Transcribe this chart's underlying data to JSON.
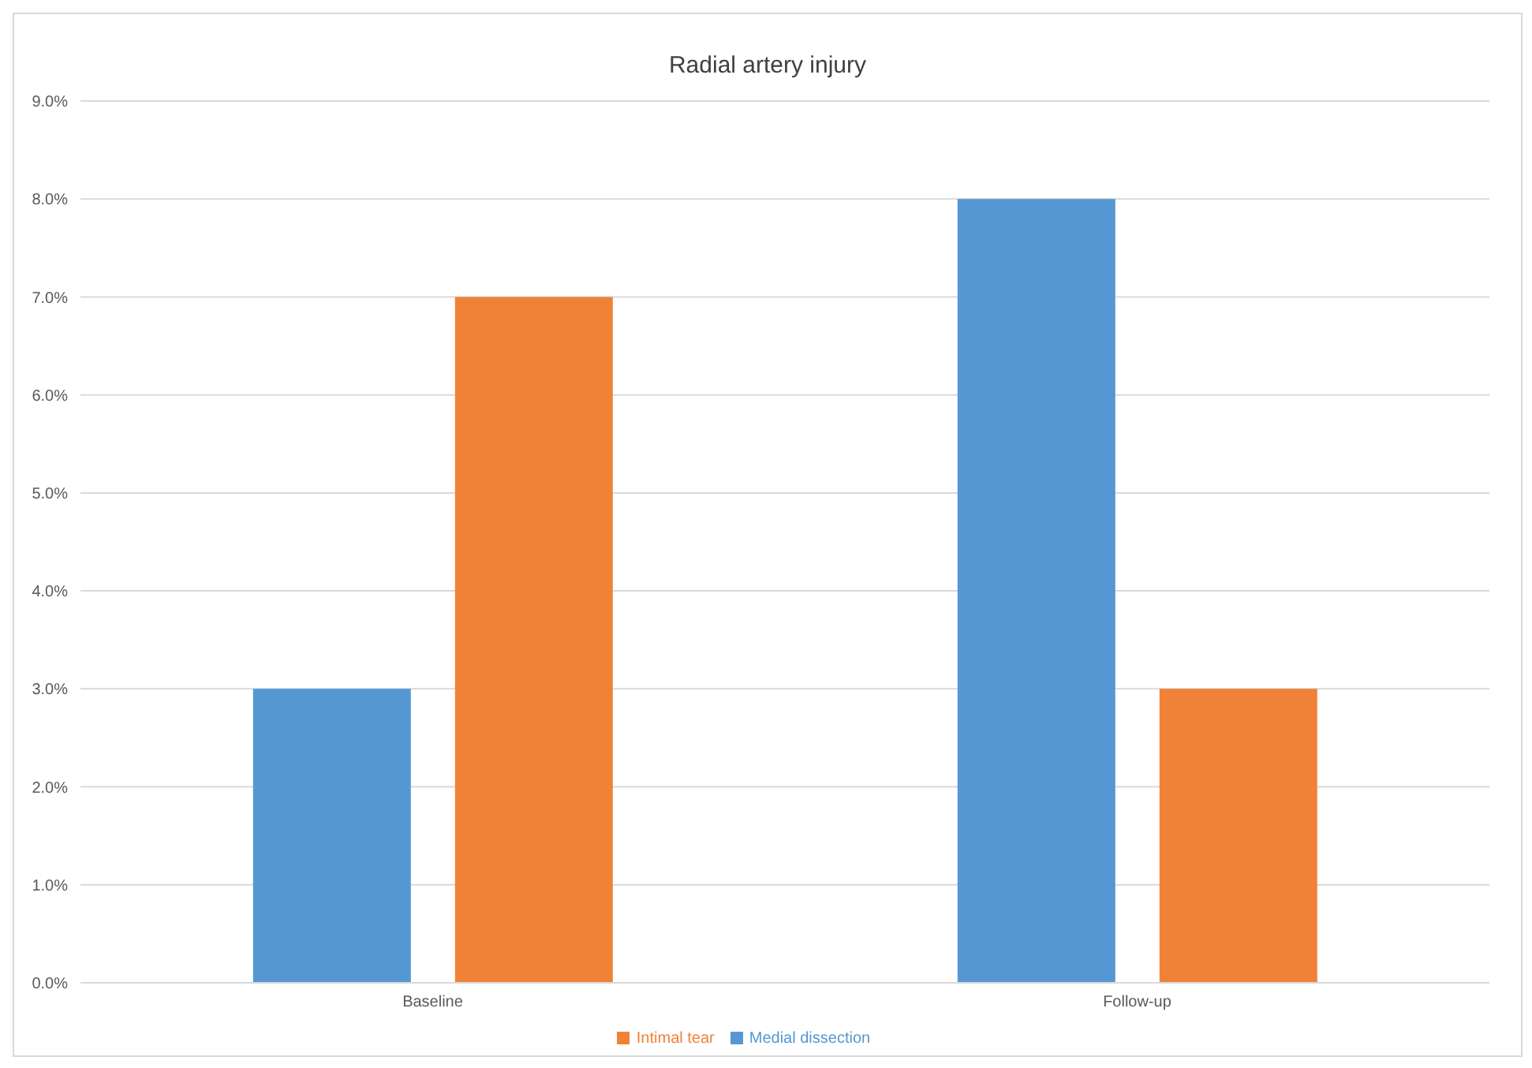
{
  "chart_data": {
    "type": "bar",
    "title": "Radial artery injury",
    "categories": [
      "Baseline",
      "Follow-up"
    ],
    "series": [
      {
        "name": "Medial dissection",
        "color": "#5597d3",
        "values": [
          3.0,
          8.0
        ]
      },
      {
        "name": "Intimal tear",
        "color": "#f08238",
        "values": [
          7.0,
          3.0
        ]
      }
    ],
    "ylim": [
      0,
      9
    ],
    "yticks": [
      {
        "value": 0,
        "label": "0.0%"
      },
      {
        "value": 1,
        "label": "1.0%"
      },
      {
        "value": 2,
        "label": "2.0%"
      },
      {
        "value": 3,
        "label": "3.0%"
      },
      {
        "value": 4,
        "label": "4.0%"
      },
      {
        "value": 5,
        "label": "5.0%"
      },
      {
        "value": 6,
        "label": "6.0%"
      },
      {
        "value": 7,
        "label": "7.0%"
      },
      {
        "value": 8,
        "label": "8.0%"
      },
      {
        "value": 9,
        "label": "9.0%"
      }
    ],
    "grid": "y",
    "legend": "bottom"
  }
}
